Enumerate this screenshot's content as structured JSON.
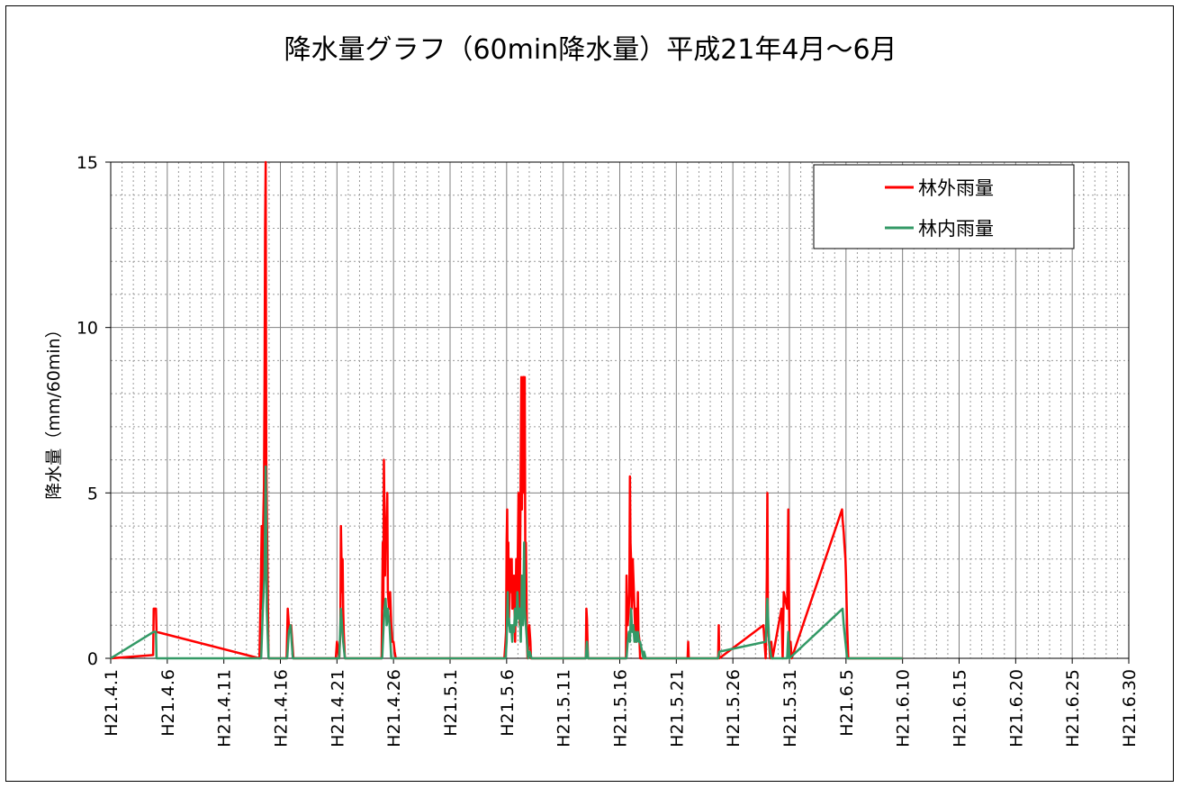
{
  "chart_data": {
    "type": "line",
    "title": "降水量グラフ（60min降水量）平成21年4月～6月",
    "xlabel": "",
    "ylabel": "降水量（mm/60min）",
    "ylim": [
      0,
      15
    ],
    "yticks": [
      "0",
      "5",
      "10",
      "15"
    ],
    "xlim_days": [
      0,
      90
    ],
    "x_tick_labels": [
      "H21.4.1",
      "H21.4.6",
      "H21.4.11",
      "H21.4.16",
      "H21.4.21",
      "H21.4.26",
      "H21.5.1",
      "H21.5.6",
      "H21.5.11",
      "H21.5.16",
      "H21.5.21",
      "H21.5.26",
      "H21.5.31",
      "H21.6.5",
      "H21.6.10",
      "H21.6.15",
      "H21.6.20",
      "H21.6.25",
      "H21.6.30"
    ],
    "grid": true,
    "legend_position": "top-right",
    "series": [
      {
        "name": "林外雨量",
        "color": "#ff0000",
        "x_date": [
          "H21.4.1",
          "H21.4.4",
          "H21.4.4",
          "H21.4.4",
          "H21.4.4",
          "H21.4.4",
          "H21.4.4",
          "H21.4.14",
          "H21.4.14",
          "H21.4.14",
          "H21.4.14",
          "H21.4.14",
          "H21.4.14",
          "H21.4.14",
          "H21.4.14",
          "H21.4.15",
          "H21.4.15",
          "H21.4.15",
          "H21.4.15",
          "H21.4.16",
          "H21.4.17",
          "H21.4.17",
          "H21.4.17",
          "H21.4.17",
          "H21.4.18",
          "H21.4.18",
          "H21.4.21",
          "H21.4.21",
          "H21.4.21",
          "H21.4.21",
          "H21.4.21",
          "H21.4.21",
          "H21.4.22",
          "H21.4.22",
          "H21.4.22",
          "H21.4.22",
          "H21.4.25",
          "H21.4.25",
          "H21.4.25",
          "H21.4.25",
          "H21.4.25",
          "H21.4.25",
          "H21.4.25",
          "H21.4.25",
          "H21.4.25",
          "H21.4.26",
          "H21.4.26",
          "H21.4.26",
          "H21.4.26",
          "H21.4.26",
          "H21.4.26",
          "H21.4.26",
          "H21.4.26",
          "H21.5.4",
          "H21.5.4",
          "H21.5.4",
          "H21.5.5",
          "H21.5.5",
          "H21.5.5",
          "H21.5.5",
          "H21.5.5",
          "H21.5.5",
          "H21.5.5",
          "H21.5.5",
          "H21.5.5",
          "H21.5.6",
          "H21.5.6",
          "H21.5.6",
          "H21.5.6",
          "H21.5.6",
          "H21.5.6",
          "H21.5.6",
          "H21.5.6",
          "H21.5.6",
          "H21.5.6",
          "H21.5.7",
          "H21.5.7",
          "H21.5.7",
          "H21.5.7",
          "H21.5.7",
          "H21.5.7",
          "H21.5.7",
          "H21.5.7",
          "H21.5.8",
          "H21.5.8",
          "H21.5.8",
          "H21.5.8",
          "H21.5.13",
          "H21.5.13",
          "H21.5.13",
          "H21.5.13",
          "H21.5.13",
          "H21.5.16",
          "H21.5.16",
          "H21.5.16",
          "H21.5.16",
          "H21.5.17",
          "H21.5.17",
          "H21.5.17",
          "H21.5.17",
          "H21.5.17",
          "H21.5.17",
          "H21.5.17",
          "H21.5.17",
          "H21.5.17",
          "H21.5.17",
          "H21.5.17",
          "H21.5.17",
          "H21.5.18",
          "H21.5.18",
          "H21.5.18",
          "H21.5.18",
          "H21.5.18",
          "H21.5.19",
          "H21.5.19",
          "H21.5.19",
          "H21.5.22",
          "H21.5.22",
          "H21.5.22",
          "H21.5.24",
          "H21.5.24",
          "H21.5.24",
          "H21.5.29",
          "H21.5.29",
          "H21.5.29",
          "H21.5.29",
          "H21.5.29",
          "H21.5.29",
          "H21.5.29",
          "H21.5.30",
          "H21.5.30",
          "H21.5.30",
          "H21.5.31",
          "H21.5.31",
          "H21.5.31",
          "H21.5.31",
          "H21.5.31",
          "H21.5.31",
          "H21.5.31",
          "H21.5.31",
          "H21.6.5",
          "H21.6.5",
          "H21.6.5",
          "H21.6.5",
          "H21.6.5",
          "H21.6.5",
          "H21.6.5",
          "H21.6.6",
          "H21.6.6",
          "H21.6.10"
        ],
        "x": [
          0,
          3.75,
          3.8,
          3.85,
          3.9,
          4.0,
          4.05,
          13.15,
          13.25,
          13.35,
          13.4,
          13.45,
          13.55,
          13.6,
          13.65,
          13.7,
          13.75,
          13.9,
          13.95,
          15.55,
          15.65,
          15.75,
          15.85,
          15.95,
          16.05,
          16.15,
          19.9,
          20.0,
          20.2,
          20.3,
          20.35,
          20.45,
          20.5,
          20.55,
          20.6,
          20.7,
          23.95,
          24.05,
          24.1,
          24.15,
          24.25,
          24.3,
          24.35,
          24.45,
          24.5,
          24.6,
          24.7,
          24.8,
          24.9,
          24.95,
          25.0,
          25.1,
          25.2,
          34.8,
          34.9,
          34.95,
          35.0,
          35.05,
          35.1,
          35.15,
          35.2,
          35.3,
          35.35,
          35.45,
          35.5,
          35.65,
          35.75,
          35.85,
          35.95,
          36.05,
          36.15,
          36.2,
          36.3,
          36.35,
          36.45,
          36.5,
          36.55,
          36.6,
          36.65,
          36.7,
          36.75,
          36.8,
          36.85,
          37.0,
          37.1,
          37.15,
          37.25,
          42.0,
          42.05,
          42.1,
          42.15,
          42.2,
          45.55,
          45.6,
          45.65,
          45.7,
          45.8,
          45.85,
          45.9,
          45.95,
          46.0,
          46.05,
          46.1,
          46.15,
          46.25,
          46.3,
          46.4,
          46.45,
          46.55,
          46.6,
          46.65,
          46.75,
          46.8,
          46.9,
          47.0,
          47.2,
          51.0,
          51.05,
          51.1,
          53.7,
          53.75,
          53.8,
          57.7,
          57.8,
          57.9,
          57.95,
          58.0,
          58.05,
          58.1,
          58.3,
          58.4,
          58.5,
          59.3,
          59.4,
          59.5,
          59.8,
          59.9,
          60.0,
          60.1,
          60.2,
          64.65,
          64.7,
          64.75,
          64.8,
          64.85,
          64.95,
          65.0,
          65.1,
          65.2,
          70.0
        ],
        "values": [
          0,
          0.1,
          1.5,
          1.5,
          1.5,
          1.5,
          0.8,
          0,
          1.8,
          4.0,
          1.5,
          3.5,
          5.2,
          8.4,
          13.0,
          15.0,
          6.0,
          1.5,
          0,
          0,
          1.5,
          1.0,
          0.8,
          1.0,
          0.5,
          0,
          0,
          0.5,
          0,
          0.8,
          4.0,
          2.0,
          3.0,
          1.5,
          0.8,
          0,
          0,
          3.5,
          1.5,
          6.0,
          2.5,
          4.0,
          3.5,
          5.0,
          2.0,
          1.5,
          2.0,
          1.0,
          0.5,
          0.5,
          0.5,
          0.2,
          0,
          0,
          0.5,
          0.8,
          3.5,
          4.5,
          2.0,
          3.5,
          1.0,
          3.0,
          2.0,
          3.0,
          1.5,
          2.5,
          0.5,
          3.0,
          2.0,
          5.0,
          1.0,
          3.5,
          8.5,
          4.5,
          8.5,
          8.5,
          5.0,
          8.5,
          3.0,
          3.5,
          2.0,
          0.5,
          0,
          1.0,
          0.5,
          0,
          0,
          0,
          1.5,
          1.2,
          0.5,
          0,
          0,
          2.5,
          1.5,
          1.0,
          1.5,
          2.0,
          5.5,
          3.5,
          3.0,
          1.5,
          2.0,
          3.0,
          2.0,
          1.5,
          0.5,
          1.5,
          0.8,
          2.0,
          0.8,
          0.5,
          0,
          0,
          0,
          0,
          0,
          0.5,
          0,
          0,
          1.0,
          0,
          1.0,
          0.5,
          0,
          1.0,
          2.5,
          5.0,
          1.0,
          0,
          0.5,
          0,
          1.5,
          0,
          2.0,
          1.5,
          4.5,
          0.5,
          0.5,
          0,
          4.5,
          4.2,
          4.0,
          3.8,
          3.5,
          3.0,
          2.5,
          1.0,
          0,
          0
        ]
      },
      {
        "name": "林内雨量",
        "color": "#339966",
        "x_date": [
          "H21.4.1",
          "H21.4.4",
          "H21.4.4",
          "H21.4.4",
          "H21.4.4",
          "H21.4.14",
          "H21.4.14",
          "H21.4.14",
          "H21.4.15",
          "H21.4.15",
          "H21.4.15",
          "H21.4.15",
          "H21.4.15",
          "H21.4.16",
          "H21.4.17",
          "H21.4.17",
          "H21.4.18",
          "H21.4.21",
          "H21.4.21",
          "H21.4.21",
          "H21.4.22",
          "H21.4.22",
          "H21.4.25",
          "H21.4.25",
          "H21.4.25",
          "H21.4.25",
          "H21.4.25",
          "H21.4.25",
          "H21.4.26",
          "H21.4.26",
          "H21.5.4",
          "H21.5.5",
          "H21.5.5",
          "H21.5.5",
          "H21.5.5",
          "H21.5.5",
          "H21.5.5",
          "H21.5.5",
          "H21.5.5",
          "H21.5.6",
          "H21.5.6",
          "H21.5.6",
          "H21.5.6",
          "H21.5.6",
          "H21.5.6",
          "H21.5.6",
          "H21.5.7",
          "H21.5.7",
          "H21.5.7",
          "H21.5.7",
          "H21.5.7",
          "H21.5.7",
          "H21.5.7",
          "H21.5.8",
          "H21.5.8",
          "H21.5.13",
          "H21.5.13",
          "H21.5.13",
          "H21.5.16",
          "H21.5.16",
          "H21.5.17",
          "H21.5.17",
          "H21.5.17",
          "H21.5.17",
          "H21.5.17",
          "H21.5.17",
          "H21.5.17",
          "H21.5.17",
          "H21.5.18",
          "H21.5.18",
          "H21.5.18",
          "H21.5.19",
          "H21.5.19",
          "H21.5.19",
          "H21.5.24",
          "H21.5.24",
          "H21.5.29",
          "H21.5.29",
          "H21.5.29",
          "H21.5.30",
          "H21.5.31",
          "H21.5.31",
          "H21.5.31",
          "H21.6.5",
          "H21.6.5",
          "H21.6.5",
          "H21.6.6",
          "H21.6.10"
        ],
        "x": [
          0,
          3.8,
          3.9,
          4.0,
          4.05,
          13.3,
          13.45,
          13.6,
          13.7,
          13.75,
          13.8,
          13.9,
          13.95,
          15.6,
          15.75,
          15.9,
          16.1,
          20.2,
          20.35,
          20.45,
          20.55,
          20.7,
          24.0,
          24.1,
          24.2,
          24.3,
          24.4,
          24.5,
          24.65,
          24.8,
          34.9,
          35.0,
          35.1,
          35.15,
          35.2,
          35.3,
          35.4,
          35.5,
          35.55,
          35.65,
          35.75,
          35.85,
          35.95,
          36.05,
          36.15,
          36.25,
          36.35,
          36.45,
          36.55,
          36.6,
          36.7,
          36.8,
          36.9,
          37.05,
          37.2,
          42.0,
          42.1,
          42.2,
          45.6,
          45.7,
          45.8,
          45.9,
          46.0,
          46.1,
          46.2,
          46.3,
          46.4,
          46.5,
          46.6,
          46.7,
          46.8,
          47.1,
          47.15,
          47.3,
          53.7,
          53.8,
          57.9,
          58.05,
          58.2,
          58.4,
          59.8,
          59.9,
          60.0,
          64.7,
          64.8,
          64.95,
          65.1,
          70.0
        ],
        "values": [
          0,
          0.8,
          0.8,
          0.8,
          0,
          0,
          1.5,
          2.5,
          5.8,
          4.0,
          1.5,
          0.5,
          0,
          0,
          0.8,
          1.0,
          0,
          0,
          1.5,
          1.0,
          0.5,
          0,
          0,
          0.8,
          1.5,
          1.8,
          1.0,
          1.5,
          1.0,
          0,
          0,
          0.5,
          2.0,
          1.0,
          1.2,
          0.8,
          1.0,
          0.5,
          1.0,
          0.8,
          1.5,
          1.0,
          2.0,
          1.2,
          1.5,
          0.5,
          2.5,
          1.0,
          3.5,
          1.5,
          1.0,
          0.5,
          0,
          0.2,
          0,
          0,
          0.5,
          0,
          0,
          0.5,
          0.8,
          0.5,
          1.5,
          0.8,
          1.0,
          0.5,
          0.8,
          0.5,
          0.8,
          0.5,
          0.5,
          0,
          0.2,
          0,
          0,
          0.2,
          0.5,
          1.8,
          0.5,
          0,
          0,
          0.8,
          0,
          1.5,
          1.0,
          0.5,
          0,
          0
        ]
      }
    ]
  }
}
